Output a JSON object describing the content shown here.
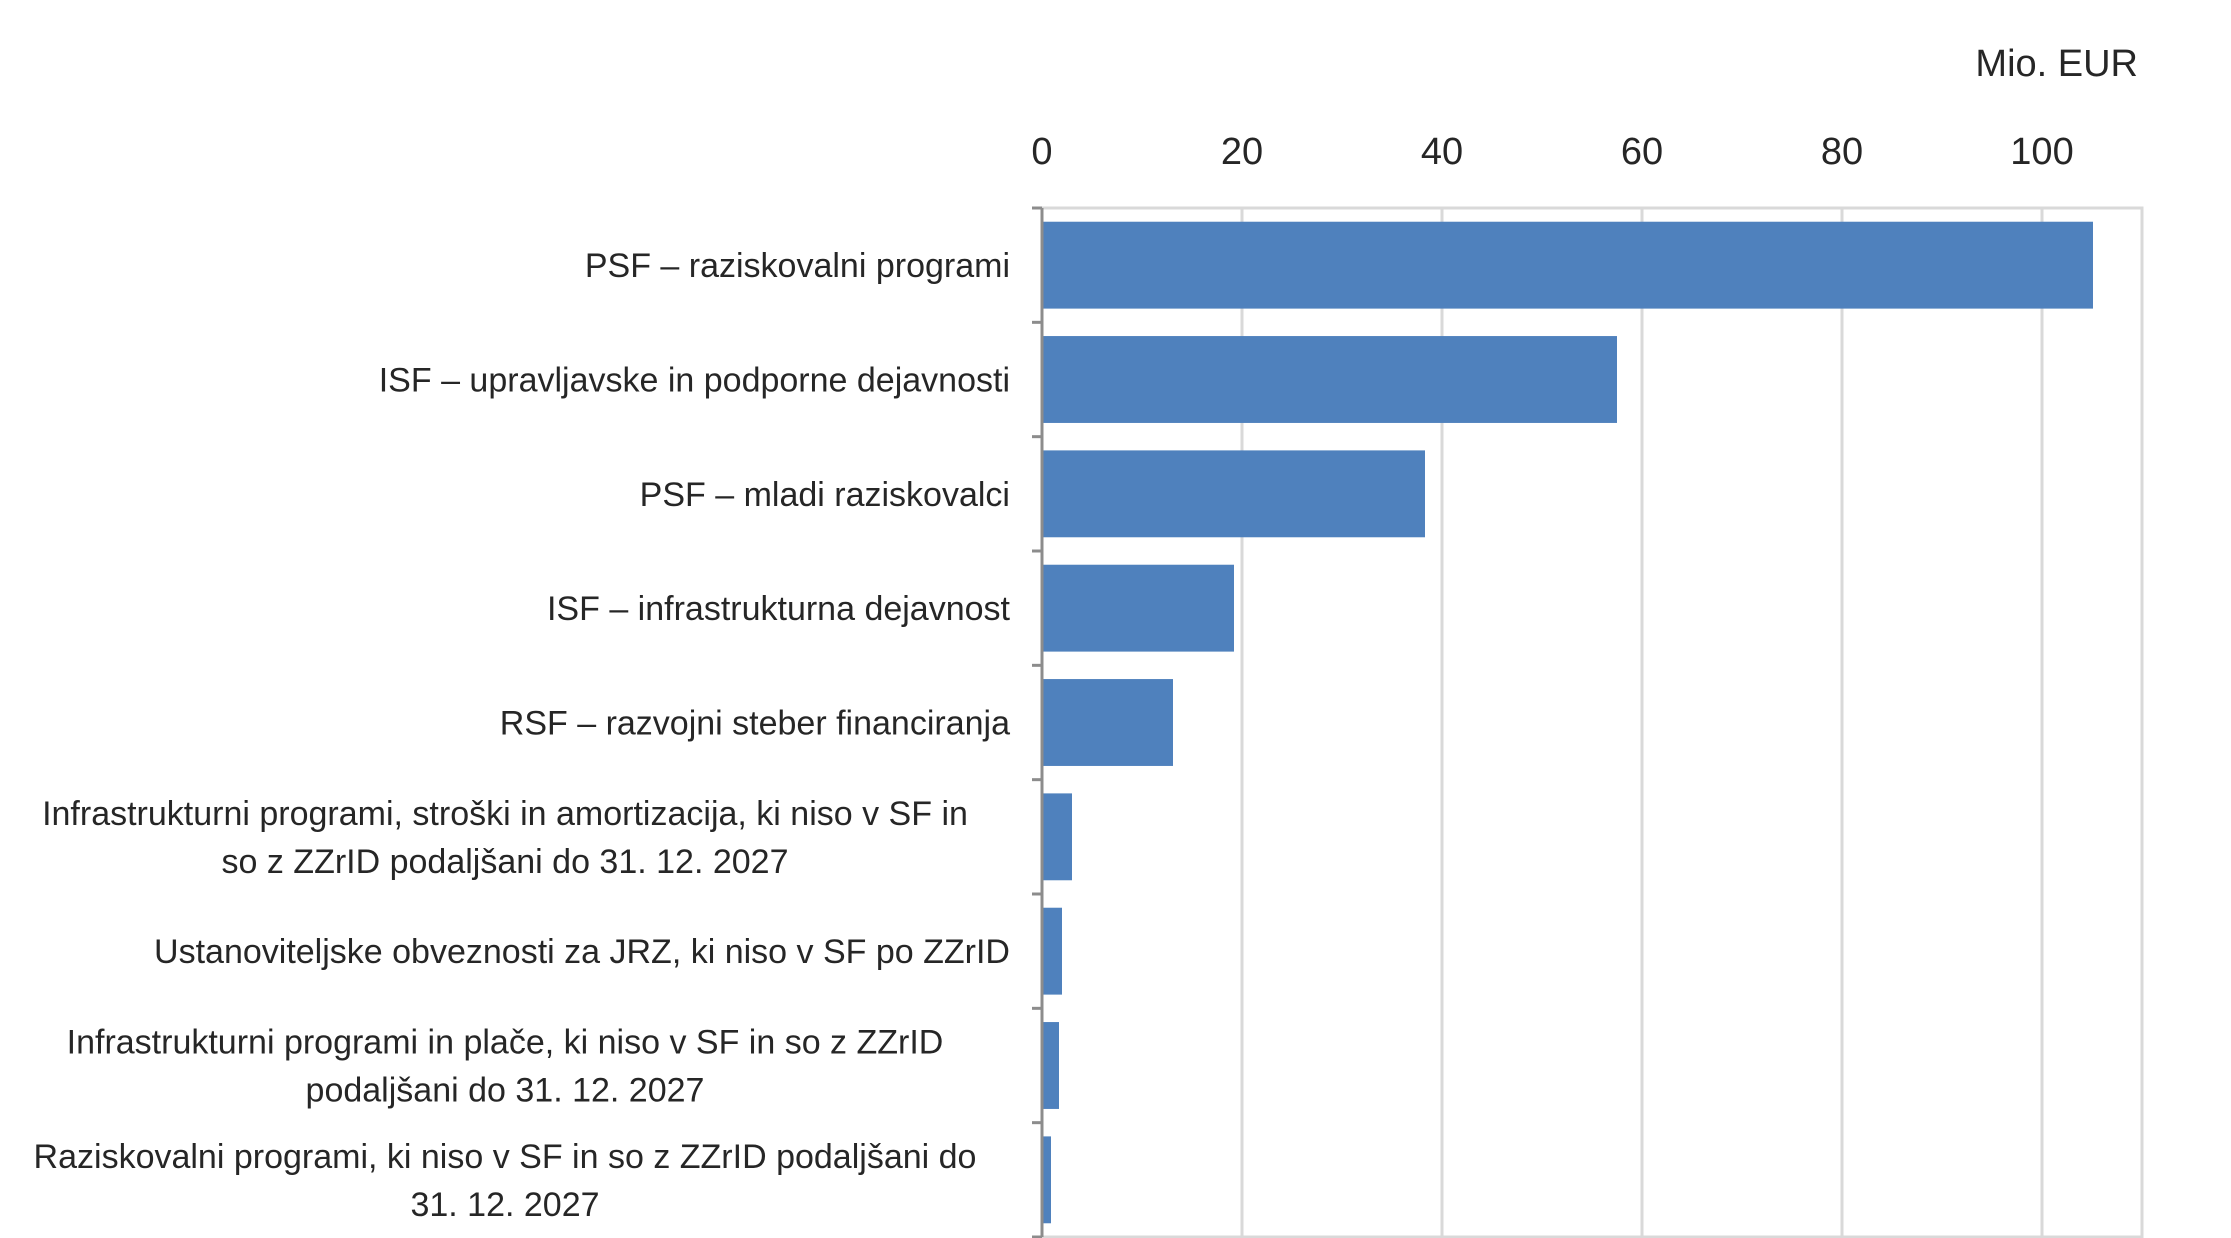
{
  "chart_data": {
    "type": "bar",
    "orientation": "horizontal",
    "unit_label": "Mio. EUR",
    "x_axis_position": "top",
    "xlim": [
      0,
      110
    ],
    "x_ticks": [
      0,
      20,
      40,
      60,
      80,
      100
    ],
    "grid": true,
    "bar_color": "#4F81BD",
    "categories": [
      [
        "PSF – raziskovalni programi"
      ],
      [
        "ISF – upravljavske in podporne dejavnosti"
      ],
      [
        "PSF – mladi raziskovalci"
      ],
      [
        "ISF – infrastrukturna dejavnost"
      ],
      [
        "RSF – razvojni steber financiranja"
      ],
      [
        "Infrastrukturni programi, stroški in amortizacija, ki niso v SF in",
        "so z ZZrID podaljšani do 31. 12. 2027"
      ],
      [
        "Ustanoviteljske obveznosti za JRZ, ki niso v SF po ZZrID"
      ],
      [
        "Infrastrukturni programi in plače, ki niso v SF in so z ZZrID",
        "podaljšani do 31. 12. 2027"
      ],
      [
        "Raziskovalni programi, ki niso v SF in so z ZZrID podaljšani do",
        "31. 12. 2027"
      ]
    ],
    "values": [
      105.1,
      57.5,
      38.3,
      19.2,
      13.1,
      3.0,
      2.0,
      1.7,
      0.9
    ]
  }
}
